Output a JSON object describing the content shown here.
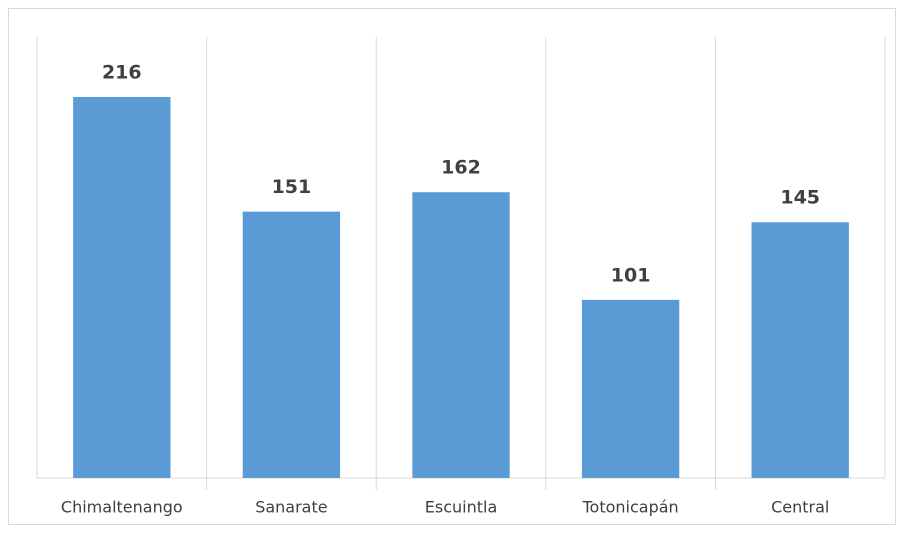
{
  "chart_data": {
    "type": "bar",
    "categories": [
      "Chimaltenango",
      "Sanarate",
      "Escuintla",
      "Totonicapán",
      "Central"
    ],
    "values": [
      216,
      151,
      162,
      101,
      145
    ],
    "color": "#5b9bd5",
    "ylim": [
      0,
      250
    ],
    "grid": true
  }
}
